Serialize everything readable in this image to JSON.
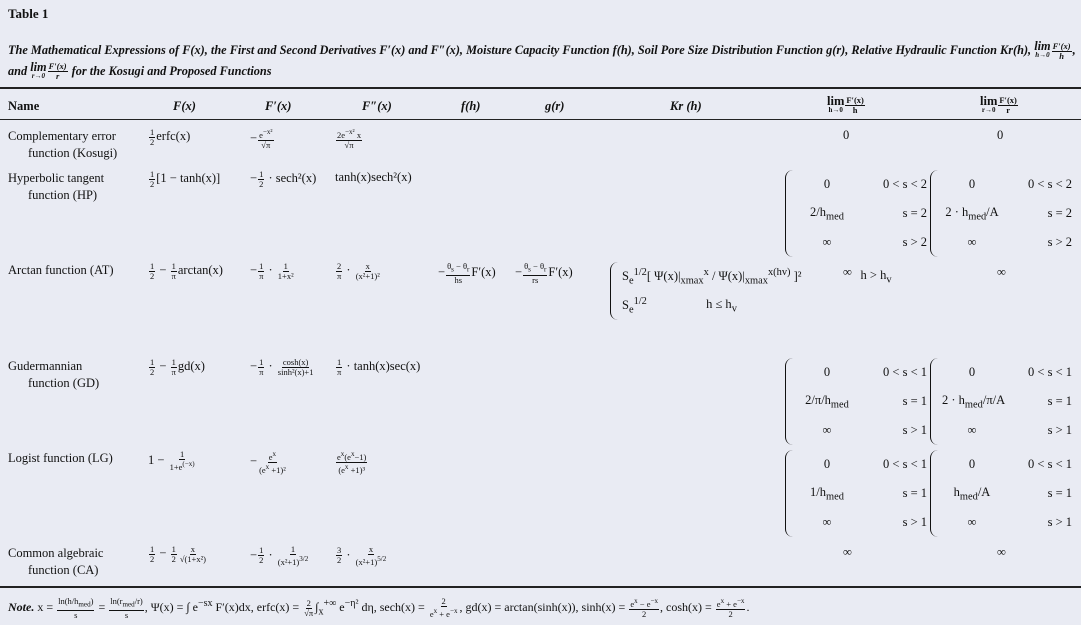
{
  "title": "Table 1",
  "caption": "The Mathematical Expressions of F(x), the First and Second Derivatives F′(x) and F″(x), Moisture Capacity Function f(h), Soil Pore Size Distribution Function g(r), Relative Hydraulic Function K",
  "caption_line2": [
    "r",
    "(h), ",
    {
      "lim": "h→0",
      "n": "F′(x)",
      "d": "h"
    },
    ", and ",
    {
      "lim": "r→0",
      "n": "F′(x)",
      "d": "r"
    },
    " for the Kosugi and Proposed Functions"
  ],
  "headers": {
    "name": "Name",
    "F": "F(x)",
    "F1": "F′(x)",
    "F2": "F″(x)",
    "f": "f(h)",
    "g": "g(r)",
    "Kr": "Kr (h)",
    "limh": [
      {
        "lim": "h→0",
        "n": "F′(x)",
        "d": "h"
      }
    ],
    "limr": [
      {
        "lim": "r→0",
        "n": "F′(x)",
        "d": "r"
      }
    ]
  },
  "rows": [
    {
      "name": [
        "Complementary error",
        "function (Kosugi)"
      ],
      "F": [
        {
          "n": "1",
          "d": "2"
        },
        "erfc(x)"
      ],
      "F1": [
        "−",
        {
          "n": "e<sup>−x²</sup>",
          "d": "√π"
        }
      ],
      "F2": [
        {
          "n": "2e<sup>−x²</sup> x",
          "d": "√π"
        }
      ],
      "limh": "0",
      "limr": "0"
    },
    {
      "name": [
        "Hyperbolic tangent",
        "function (HP)"
      ],
      "F": [
        {
          "n": "1",
          "d": "2"
        },
        "[1 − tanh(x)]"
      ],
      "F1": [
        "−",
        {
          "n": "1",
          "d": "2"
        },
        " · sech²(x)"
      ],
      "F2": [
        "tanh(x)sech²(x)"
      ],
      "limh": [
        [
          "0",
          "0 < s < 2"
        ],
        [
          "2/h<sub>med</sub>",
          "s = 2"
        ],
        [
          "∞",
          "s > 2"
        ]
      ],
      "limr": [
        [
          "0",
          "0 < s < 2"
        ],
        [
          "2 · h<sub>med</sub>/A",
          "s = 2"
        ],
        [
          "∞",
          "s > 2"
        ]
      ]
    },
    {
      "name": [
        "Arctan function (AT)"
      ],
      "F": [
        {
          "n": "1",
          "d": "2"
        },
        " − ",
        {
          "n": "1",
          "d": "π"
        },
        "arctan(x)"
      ],
      "F1": [
        "−",
        {
          "n": "1",
          "d": "π"
        },
        " · ",
        {
          "n": "1",
          "d": "1+x²"
        }
      ],
      "F2": [
        {
          "n": "2",
          "d": "π"
        },
        " · ",
        {
          "n": "x",
          "d": "(x²+1)²"
        }
      ],
      "f": [
        "−",
        {
          "n": "θ<sub>s</sub> − θ<sub>r</sub>",
          "d": "hs"
        },
        "F′(x)"
      ],
      "g": [
        "−",
        {
          "n": "θ<sub>s</sub> − θ<sub>r</sub>",
          "d": "rs"
        },
        "F′(x)"
      ],
      "Kr": [
        [
          "S<sub>e</sub><sup>1/2</sup>[ Ψ(x)|<sub>xmax</sub><sup>x</sup> / Ψ(x)|<sub>xmax</sub><sup>x(hv)</sup> ]²",
          "h > h<sub>v</sub>"
        ],
        [
          "S<sub>e</sub><sup>1/2</sup>",
          "h ≤ h<sub>v</sub>"
        ]
      ],
      "limh": "∞",
      "limr": "∞"
    },
    {
      "name": [
        "Gudermannian",
        "function (GD)"
      ],
      "F": [
        {
          "n": "1",
          "d": "2"
        },
        " − ",
        {
          "n": "1",
          "d": "π"
        },
        "gd(x)"
      ],
      "F1": [
        "−",
        {
          "n": "1",
          "d": "π"
        },
        " · ",
        {
          "n": "cosh(x)",
          "d": "sinh²(x)+1"
        }
      ],
      "F2": [
        {
          "n": "1",
          "d": "π"
        },
        " · tanh(x)sec(x)"
      ],
      "limh": [
        [
          "0",
          "0 < s < 1"
        ],
        [
          "2/π/h<sub>med</sub>",
          "s = 1"
        ],
        [
          "∞",
          "s > 1"
        ]
      ],
      "limr": [
        [
          "0",
          "0 < s < 1"
        ],
        [
          "2 · h<sub>med</sub>/π/A",
          "s = 1"
        ],
        [
          "∞",
          "s > 1"
        ]
      ]
    },
    {
      "name": [
        "Logist function (LG)"
      ],
      "F": [
        "1 − ",
        {
          "n": "1",
          "d": "1+e<sup>(−x)</sup>"
        }
      ],
      "F1": [
        "−",
        {
          "n": "e<sup>x</sup>",
          "d": "(e<sup>x</sup> +1)²"
        }
      ],
      "F2": [
        {
          "n": "e<sup>x</sup>(e<sup>x</sup>−1)",
          "d": "(e<sup>x</sup> +1)³"
        }
      ],
      "limh": [
        [
          "0",
          "0 < s < 1"
        ],
        [
          "1/h<sub>med</sub>",
          "s = 1"
        ],
        [
          "∞",
          "s > 1"
        ]
      ],
      "limr": [
        [
          "0",
          "0 < s < 1"
        ],
        [
          "h<sub>med</sub>/A",
          "s = 1"
        ],
        [
          "∞",
          "s > 1"
        ]
      ]
    },
    {
      "name": [
        "Common algebraic",
        "function (CA)"
      ],
      "F": [
        {
          "n": "1",
          "d": "2"
        },
        " − ",
        {
          "n": "1",
          "d": "2"
        },
        {
          "n": "x",
          "d": "√(1+x²)"
        }
      ],
      "F1": [
        "−",
        {
          "n": "1",
          "d": "2"
        },
        " · ",
        {
          "n": "1",
          "d": "(x²+1)<sup>3/2</sup>"
        }
      ],
      "F2": [
        {
          "n": "3",
          "d": "2"
        },
        " · ",
        {
          "n": "x",
          "d": "(x²+1)<sup>5/2</sup>"
        }
      ],
      "limh": "∞",
      "limr": "∞"
    }
  ],
  "note": [
    "<b><i>Note.</i></b> x = ",
    {
      "n": "ln(h/h<sub>med</sub>)",
      "d": "s"
    },
    " = ",
    {
      "n": "ln(r<sub>med</sub>/r)",
      "d": "s"
    },
    ", Ψ(x) = ∫ e<sup>−sx</sup> F′(x)dx, erfc(x) = ",
    {
      "n": "2",
      "d": "√π"
    },
    "∫<sub>x</sub><sup>+∞</sup> e<sup>−η²</sup> dη, sech(x) = ",
    {
      "n": "2",
      "d": "e<sup>x</sup> + e<sup>−x</sup>"
    },
    ", gd(x) = arctan(sinh(x)), sinh(x) = ",
    {
      "n": "e<sup>x</sup> − e<sup>−x</sup>",
      "d": "2"
    },
    ", cosh(x) = ",
    {
      "n": "e<sup>x</sup> + e<sup>−x</sup>",
      "d": "2"
    },
    "."
  ]
}
